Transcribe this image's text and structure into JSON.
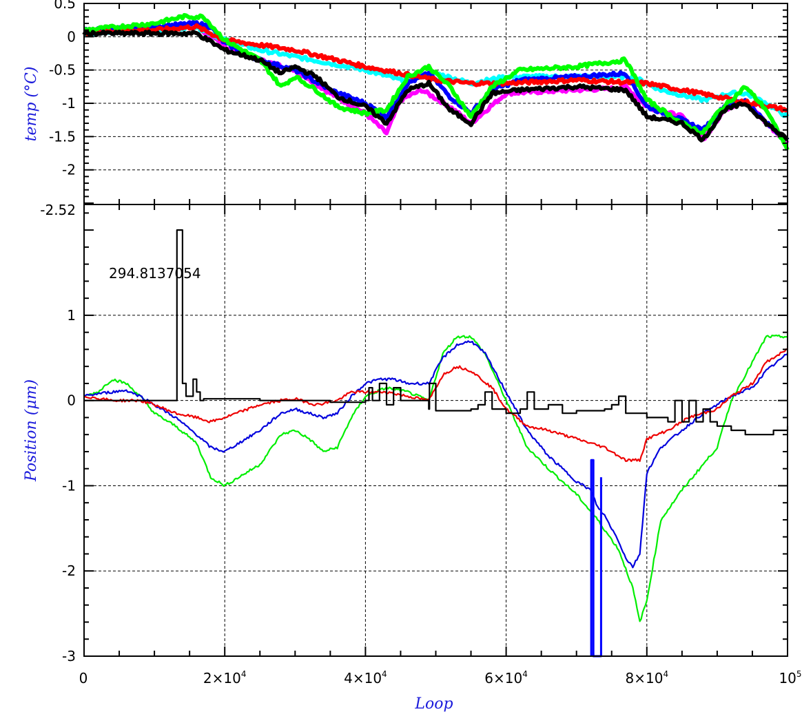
{
  "chart_data": [
    {
      "type": "line",
      "panel": "top",
      "ylabel": "temp (°C)",
      "ylim": [
        -2.52,
        0.5
      ],
      "xlim": [
        0,
        100000
      ],
      "y_ticks": [
        0.5,
        0,
        -0.5,
        -1,
        -1.5,
        -2
      ],
      "y_tick_labels": [
        "0.5",
        "0",
        "-0.5",
        "-1",
        "-1.5",
        "-2"
      ],
      "grid": true,
      "series": [
        {
          "color": "#ff00ff",
          "x": [
            0,
            5000,
            10000,
            16000,
            20000,
            25000,
            30000,
            35000,
            40000,
            43000,
            45000,
            48000,
            52000,
            55000,
            60000,
            70000,
            75000,
            77000,
            80000,
            85000,
            88000,
            91000,
            94000,
            97000,
            100000
          ],
          "y": [
            0.05,
            0.1,
            0.12,
            0.15,
            -0.15,
            -0.35,
            -0.5,
            -0.85,
            -1.15,
            -1.45,
            -0.95,
            -0.8,
            -1.05,
            -1.3,
            -0.85,
            -0.8,
            -0.78,
            -0.75,
            -1.05,
            -1.2,
            -1.55,
            -1.1,
            -0.95,
            -1.3,
            -1.6
          ]
        },
        {
          "color": "#00ffff",
          "x": [
            0,
            5000,
            10000,
            16000,
            20000,
            25000,
            30000,
            40000,
            45000,
            50000,
            55000,
            60000,
            70000,
            78000,
            82000,
            88000,
            92000,
            94000,
            97000,
            100000
          ],
          "y": [
            0.05,
            0.1,
            0.1,
            0.15,
            -0.05,
            -0.2,
            -0.3,
            -0.5,
            -0.65,
            -0.55,
            -0.7,
            -0.6,
            -0.6,
            -0.6,
            -0.8,
            -0.95,
            -0.85,
            -0.85,
            -1.0,
            -1.2
          ]
        },
        {
          "color": "#0000ff",
          "x": [
            0,
            5000,
            10000,
            16000,
            18000,
            20000,
            25000,
            30000,
            35000,
            40000,
            43000,
            46000,
            49000,
            52000,
            55000,
            58000,
            62000,
            70000,
            77000,
            80000,
            85000,
            88000,
            91000,
            94000,
            97000,
            100000
          ],
          "y": [
            0.1,
            0.12,
            0.15,
            0.2,
            0.15,
            -0.1,
            -0.35,
            -0.5,
            -0.8,
            -1.0,
            -1.2,
            -0.7,
            -0.55,
            -0.9,
            -1.15,
            -0.8,
            -0.65,
            -0.6,
            -0.55,
            -1.05,
            -1.25,
            -1.4,
            -1.05,
            -0.95,
            -1.3,
            -1.55
          ]
        },
        {
          "color": "#ff0000",
          "x": [
            0,
            5000,
            10000,
            16000,
            20000,
            30000,
            40000,
            50000,
            55000,
            60000,
            70000,
            80000,
            90000,
            100000
          ],
          "y": [
            0.05,
            0.1,
            0.1,
            0.15,
            -0.05,
            -0.2,
            -0.45,
            -0.65,
            -0.7,
            -0.7,
            -0.65,
            -0.7,
            -0.9,
            -1.1
          ]
        },
        {
          "color": "#00ff00",
          "x": [
            0,
            5000,
            10000,
            14000,
            17000,
            20000,
            25000,
            28000,
            30000,
            33000,
            36000,
            40000,
            43000,
            46000,
            49000,
            52000,
            55000,
            58000,
            62000,
            70000,
            77000,
            80000,
            85000,
            88000,
            90000,
            94000,
            97000,
            100000
          ],
          "y": [
            0.1,
            0.15,
            0.2,
            0.3,
            0.3,
            -0.05,
            -0.35,
            -0.75,
            -0.6,
            -0.8,
            -1.05,
            -1.15,
            -1.1,
            -0.6,
            -0.45,
            -0.75,
            -1.2,
            -0.75,
            -0.5,
            -0.45,
            -0.35,
            -0.95,
            -1.3,
            -1.45,
            -1.15,
            -0.75,
            -1.1,
            -1.7
          ]
        },
        {
          "color": "#000000",
          "x": [
            0,
            5000,
            10000,
            16000,
            20000,
            25000,
            28000,
            30000,
            33000,
            36000,
            40000,
            43000,
            46000,
            49000,
            52000,
            55000,
            58000,
            62000,
            70000,
            77000,
            80000,
            85000,
            88000,
            91000,
            94000,
            97000,
            100000
          ],
          "y": [
            0.05,
            0.05,
            0.05,
            0.05,
            -0.2,
            -0.35,
            -0.55,
            -0.45,
            -0.6,
            -0.9,
            -1.05,
            -1.3,
            -0.8,
            -0.7,
            -1.1,
            -1.3,
            -0.85,
            -0.8,
            -0.75,
            -0.8,
            -1.2,
            -1.3,
            -1.55,
            -1.1,
            -1.0,
            -1.3,
            -1.55
          ]
        }
      ]
    },
    {
      "type": "line",
      "panel": "bottom",
      "xlabel": "Loop",
      "ylabel": "Position (μm)",
      "ylim": [
        -3,
        2.3
      ],
      "xlim": [
        0,
        100000
      ],
      "y_ticks": [
        -3,
        -2,
        -1,
        0,
        1
      ],
      "y_tick_labels": [
        "-3",
        "-2",
        "-1",
        "0",
        "1"
      ],
      "top_label": "-2.52",
      "x_ticks": [
        0,
        20000,
        40000,
        60000,
        80000,
        100000
      ],
      "x_tick_labels": [
        {
          "base": "0",
          "exp": ""
        },
        {
          "base": "2×10",
          "exp": "4"
        },
        {
          "base": "4×10",
          "exp": "4"
        },
        {
          "base": "6×10",
          "exp": "4"
        },
        {
          "base": "8×10",
          "exp": "4"
        },
        {
          "base": "10",
          "exp": "5"
        }
      ],
      "grid": true,
      "annotation": "294.8137054",
      "series": [
        {
          "color": "#00ee00",
          "x": [
            0,
            2000,
            4000,
            6000,
            8000,
            10000,
            13000,
            16000,
            18000,
            20000,
            23000,
            25000,
            28000,
            30000,
            32000,
            34000,
            36000,
            38000,
            40000,
            43000,
            46000,
            49000,
            51000,
            53000,
            55000,
            57000,
            60000,
            63000,
            66000,
            70000,
            73000,
            76000,
            78000,
            79000,
            80000,
            82000,
            85000,
            88000,
            90000,
            92000,
            95000,
            97000,
            100000
          ],
          "y": [
            0.05,
            0.1,
            0.25,
            0.2,
            0.05,
            -0.15,
            -0.3,
            -0.5,
            -0.9,
            -1.0,
            -0.85,
            -0.75,
            -0.4,
            -0.35,
            -0.45,
            -0.6,
            -0.55,
            -0.2,
            0.05,
            0.15,
            0.1,
            0.0,
            0.55,
            0.75,
            0.75,
            0.55,
            0.0,
            -0.55,
            -0.8,
            -1.1,
            -1.4,
            -1.75,
            -2.2,
            -2.6,
            -2.35,
            -1.4,
            -1.05,
            -0.75,
            -0.55,
            0.0,
            0.45,
            0.75,
            0.75
          ]
        },
        {
          "color": "#0000dd",
          "x": [
            0,
            2000,
            4000,
            6000,
            8000,
            10000,
            13000,
            16000,
            18000,
            20000,
            23000,
            25000,
            28000,
            30000,
            32000,
            34000,
            36000,
            38000,
            40000,
            42000,
            44000,
            46000,
            49000,
            51000,
            53000,
            55000,
            57000,
            60000,
            63000,
            66000,
            68000,
            70000,
            71000,
            72000,
            73000,
            74000,
            75000,
            76000,
            77000,
            78000,
            79000,
            80000,
            82000,
            85000,
            88000,
            90000,
            92000,
            95000,
            97000,
            100000
          ],
          "y": [
            0.05,
            0.08,
            0.1,
            0.12,
            0.05,
            -0.05,
            -0.2,
            -0.4,
            -0.55,
            -0.6,
            -0.45,
            -0.35,
            -0.15,
            -0.1,
            -0.15,
            -0.2,
            -0.15,
            0.05,
            0.2,
            0.25,
            0.25,
            0.2,
            0.2,
            0.5,
            0.65,
            0.7,
            0.55,
            0.1,
            -0.35,
            -0.65,
            -0.8,
            -0.95,
            -1.0,
            -1.05,
            -1.25,
            -1.35,
            -1.5,
            -1.65,
            -1.85,
            -1.95,
            -1.8,
            -0.85,
            -0.55,
            -0.35,
            -0.15,
            -0.05,
            0.05,
            0.15,
            0.35,
            0.55
          ]
        },
        {
          "color": "#ee0000",
          "x": [
            0,
            4000,
            8000,
            10000,
            13000,
            16000,
            18000,
            20000,
            25000,
            28000,
            30000,
            33000,
            36000,
            38000,
            40000,
            43000,
            46000,
            49000,
            51000,
            53000,
            55000,
            58000,
            60000,
            63000,
            66000,
            70000,
            74000,
            77000,
            79000,
            80000,
            83000,
            86000,
            90000,
            92000,
            95000,
            97000,
            100000
          ],
          "y": [
            0.05,
            0.0,
            0.0,
            -0.05,
            -0.15,
            -0.2,
            -0.25,
            -0.2,
            -0.05,
            0.0,
            0.02,
            -0.05,
            0.0,
            0.1,
            0.1,
            0.1,
            0.05,
            0.0,
            0.3,
            0.4,
            0.35,
            0.15,
            -0.1,
            -0.3,
            -0.35,
            -0.45,
            -0.55,
            -0.7,
            -0.7,
            -0.45,
            -0.35,
            -0.2,
            -0.1,
            0.05,
            0.2,
            0.45,
            0.6
          ]
        },
        {
          "color": "#000000",
          "x": [
            0,
            13000,
            13200,
            14000,
            14500,
            15500,
            16000,
            16500,
            17000,
            25000,
            35000,
            40000,
            40500,
            41000,
            42000,
            43000,
            44000,
            45000,
            49000,
            49100,
            50000,
            55000,
            56000,
            57000,
            58000,
            60000,
            62000,
            63000,
            64000,
            66000,
            68000,
            70000,
            74000,
            75000,
            76000,
            77000,
            80000,
            83000,
            84000,
            85000,
            86000,
            87000,
            88000,
            89000,
            90000,
            92000,
            94000,
            96000,
            98000,
            100000
          ],
          "y": [
            0.0,
            0.0,
            2.0,
            0.2,
            0.05,
            0.25,
            0.1,
            0.0,
            0.02,
            0.0,
            -0.02,
            0.0,
            0.15,
            0.0,
            0.2,
            -0.05,
            0.15,
            0.0,
            -0.1,
            0.2,
            -0.12,
            -0.1,
            -0.05,
            0.1,
            -0.1,
            -0.15,
            -0.1,
            0.1,
            -0.1,
            -0.05,
            -0.15,
            -0.12,
            -0.1,
            -0.05,
            0.05,
            -0.15,
            -0.2,
            -0.25,
            0.0,
            -0.25,
            0.0,
            -0.25,
            -0.1,
            -0.25,
            -0.3,
            -0.35,
            -0.4,
            -0.4,
            -0.35,
            -0.3
          ]
        },
        {
          "color": "#0000ff",
          "x": [
            72100,
            72100,
            72400,
            72400,
            73500,
            73500
          ],
          "y": [
            -3,
            -0.7,
            -0.7,
            -3,
            -3,
            -0.9
          ]
        }
      ]
    }
  ]
}
